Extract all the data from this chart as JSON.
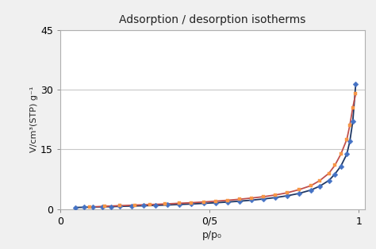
{
  "title": "Adsorption / desorption isotherms",
  "xlabel": "p/p₀",
  "ylabel": "V/cm³(STP) g⁻¹",
  "xlim": [
    0,
    1.02
  ],
  "ylim": [
    0,
    45
  ],
  "yticks": [
    0,
    15,
    30,
    45
  ],
  "xtick_labels": [
    "0",
    "0/5",
    "1"
  ],
  "xtick_positions": [
    0,
    0.5,
    1.0
  ],
  "fig_bg": "#f0f0f0",
  "plot_bg": "#ffffff",
  "adsorption_x": [
    0.05,
    0.08,
    0.11,
    0.14,
    0.17,
    0.2,
    0.24,
    0.28,
    0.32,
    0.36,
    0.4,
    0.44,
    0.48,
    0.52,
    0.56,
    0.6,
    0.64,
    0.68,
    0.72,
    0.76,
    0.8,
    0.84,
    0.87,
    0.9,
    0.92,
    0.94,
    0.96,
    0.97,
    0.98,
    0.99
  ],
  "adsorption_y": [
    0.42,
    0.48,
    0.53,
    0.58,
    0.63,
    0.7,
    0.78,
    0.86,
    0.95,
    1.05,
    1.18,
    1.3,
    1.45,
    1.6,
    1.78,
    2.0,
    2.25,
    2.55,
    2.9,
    3.35,
    3.95,
    4.8,
    5.8,
    7.2,
    8.8,
    10.8,
    13.8,
    17.0,
    22.0,
    31.5
  ],
  "desorption_x": [
    0.1,
    0.15,
    0.2,
    0.25,
    0.3,
    0.35,
    0.4,
    0.44,
    0.48,
    0.52,
    0.56,
    0.6,
    0.64,
    0.68,
    0.72,
    0.76,
    0.8,
    0.84,
    0.87,
    0.9,
    0.92,
    0.94,
    0.96,
    0.97,
    0.98,
    0.99
  ],
  "desorption_y": [
    0.55,
    0.72,
    0.88,
    1.02,
    1.15,
    1.3,
    1.48,
    1.62,
    1.8,
    2.0,
    2.22,
    2.48,
    2.78,
    3.12,
    3.55,
    4.1,
    4.9,
    5.9,
    7.2,
    9.0,
    11.0,
    13.8,
    17.5,
    21.0,
    25.5,
    29.0
  ],
  "adsorption_line_color": "#1f3864",
  "adsorption_marker_color": "#4472c4",
  "adsorption_marker": "D",
  "desorption_line_color": "#c0504d",
  "desorption_marker_color": "#f79646",
  "desorption_marker": "s",
  "line_width": 1.3,
  "marker_size": 3.5,
  "grid_color": "#c8c8c8"
}
